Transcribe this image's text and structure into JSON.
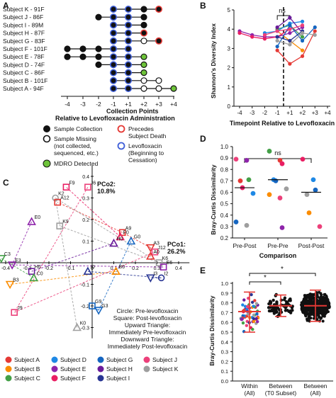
{
  "colors": {
    "A": "#e53935",
    "B": "#fb8c00",
    "C": "#43a047",
    "D": "#1e88e5",
    "E": "#8e24aa",
    "F": "#e91e63",
    "G": "#1565c0",
    "H": "#6a1b9a",
    "I": "#283593",
    "J": "#ec407a",
    "K": "#9e9e9e",
    "blue_ring": "#3f5fd8",
    "red_ring": "#e53935",
    "green_fill": "#6ec43a"
  },
  "panelA": {
    "label": "A",
    "subjects": [
      "Subject K - 91F",
      "Subject J - 86F",
      "Subject I - 89M",
      "Subject H - 87F",
      "Subject G - 83F",
      "Subject F - 101F",
      "Subject E - 78F",
      "Subject D - 74F",
      "Subject C - 86F",
      "Subject B - 101F",
      "Subject A - 94F"
    ],
    "ticks": [
      "-4",
      "-3",
      "-2",
      "-1",
      "+1",
      "+2",
      "+3",
      "+4"
    ],
    "xlabel1": "Collection Points",
    "xlabel2": "Relative to Levofloxacin Administration",
    "legend": {
      "sample_collection": "Sample Collection",
      "sample_missing_1": "Sample Missing",
      "sample_missing_2": "(not collected,",
      "sample_missing_3": "sequenced, etc.)",
      "mdro": "MDRO Detected",
      "death_1": "Precedes",
      "death_2": "Subject Death",
      "levo_1": "Levofloxacin",
      "levo_2": "(Beginning to",
      "levo_3": "Cessation)"
    }
  },
  "panelB": {
    "label": "B",
    "ylabel": "Shannon's Diversity Index",
    "xlabel": "Timepoint Relative to Levofloxacin",
    "ns": "ns",
    "yticks": [
      "0",
      "1",
      "2",
      "3",
      "4",
      "5"
    ],
    "xticks": [
      "-4",
      "-3",
      "-2",
      "-1",
      "+1",
      "+2",
      "+3",
      "+4"
    ]
  },
  "panelC": {
    "label": "C",
    "pco2": "PCo2:",
    "pco2_val": "10.8%",
    "pco1": "PCo1:",
    "pco1_val": "26.2%",
    "xticks": [
      "-0.5",
      "-0.4",
      "-0.3",
      "-0.2",
      "-0.1",
      "0",
      "0.1",
      "0.2",
      "0.3",
      "0.4"
    ],
    "yticks": [
      "0.4",
      "0.3",
      "0.2",
      "0.1",
      "-0.1",
      "-0.2",
      "-0.3"
    ],
    "note": [
      "Circle: Pre-levofloxacin",
      "Square: Post-levofloxacin",
      "Upward Triangle:",
      "Immediately Pre-levofloxacin",
      "Downward Triangle:",
      "Immediately Post-levofloxacin"
    ],
    "point_labels": [
      "F9",
      "J6",
      "K2",
      "A12",
      "E0",
      "K9",
      "A9",
      "F0",
      "G0",
      "H0",
      "A3",
      "J12",
      "C3",
      "E3",
      "A0",
      "K6",
      "E6",
      "H6",
      "C0",
      "I0",
      "B0",
      "I3",
      "I2",
      "B3",
      "J9",
      "G9",
      "G3",
      "K0"
    ]
  },
  "panelD": {
    "label": "D",
    "ylabel": "Bray-Curtis Dissimilarity",
    "xlabel": "Comparison",
    "ns": "ns",
    "yticks": [
      "0.2",
      "0.3",
      "0.4",
      "0.5",
      "0.6",
      "0.7",
      "0.8",
      "0.9",
      "1.0"
    ],
    "categories": [
      "Pre-Post",
      "Pre-Pre",
      "Post-Post"
    ]
  },
  "panelE": {
    "label": "E",
    "ylabel": "Bray-Curtis Dissimilarity",
    "yticks": [
      "0.0",
      "0.1",
      "0.2",
      "0.3",
      "0.4",
      "0.5",
      "0.6",
      "0.7",
      "0.8",
      "0.9",
      "1.0"
    ],
    "cat1": [
      "Within",
      "(All)"
    ],
    "cat2": [
      "Between",
      "(T0 Subset)"
    ],
    "cat3": [
      "Between",
      "(All)"
    ],
    "star": "*"
  },
  "legendC": [
    "Subject A",
    "Subject B",
    "Subject C",
    "Subject D",
    "Subject E",
    "Subject F",
    "Subject G",
    "Subject H",
    "Subject I",
    "Subject J",
    "Subject K"
  ],
  "chart_data": [
    {
      "type": "scatter",
      "title": "",
      "description": "Sample timeline per subject",
      "categories": [
        "Subject K - 91F",
        "Subject J - 86F",
        "Subject I - 89M",
        "Subject H - 87F",
        "Subject G - 83F",
        "Subject F - 101F",
        "Subject E - 78F",
        "Subject D - 74F",
        "Subject C - 86F",
        "Subject B - 101F",
        "Subject A - 94F"
      ],
      "x": [
        "-4",
        "-3",
        "-2",
        "-1",
        "+1",
        "+2",
        "+3",
        "+4"
      ],
      "xlabel": "Collection Points Relative to Levofloxacin Administration",
      "rows": [
        {
          "start": -1,
          "end": 3,
          "missing": [],
          "death": [
            3
          ],
          "mdro": []
        },
        {
          "start": -2,
          "end": 2,
          "missing": [],
          "death": [],
          "mdro": []
        },
        {
          "start": -1,
          "end": 2,
          "missing": [],
          "death": [],
          "mdro": []
        },
        {
          "start": -1,
          "end": 2,
          "missing": [],
          "death": [
            2
          ],
          "mdro": []
        },
        {
          "start": -1,
          "end": 3,
          "missing": [
            2
          ],
          "death": [
            3
          ],
          "mdro": []
        },
        {
          "start": -4,
          "end": 1,
          "missing": [],
          "death": [],
          "mdro": []
        },
        {
          "start": -4,
          "end": 2,
          "missing": [],
          "death": [],
          "mdro": [
            2
          ]
        },
        {
          "start": -2,
          "end": 2,
          "missing": [],
          "death": [],
          "mdro": [
            2
          ]
        },
        {
          "start": -1,
          "end": 2,
          "missing": [],
          "death": [],
          "mdro": [
            2
          ]
        },
        {
          "start": -1,
          "end": 3,
          "missing": [
            2,
            3
          ],
          "death": [],
          "mdro": []
        },
        {
          "start": -1,
          "end": 4,
          "missing": [
            2,
            3
          ],
          "death": [],
          "mdro": [
            4
          ]
        }
      ]
    },
    {
      "type": "line",
      "xlabel": "Timepoint Relative to Levofloxacin",
      "ylabel": "Shannon's Diversity Index",
      "ylim": [
        0,
        5
      ],
      "x": [
        "-4",
        "-3",
        "-2",
        "-1",
        "+1",
        "+2",
        "+3",
        "+4"
      ],
      "series": [
        {
          "subject": "A",
          "values": [
            null,
            null,
            null,
            2.9,
            2.2,
            2.6,
            3.9,
            null
          ]
        },
        {
          "subject": "B",
          "values": [
            null,
            null,
            null,
            3.9,
            3.4,
            2.9,
            null,
            null
          ]
        },
        {
          "subject": "C",
          "values": [
            null,
            null,
            null,
            4.0,
            4.2,
            3.6,
            null,
            null
          ]
        },
        {
          "subject": "D",
          "values": [
            null,
            null,
            3.8,
            3.9,
            4.3,
            4.4,
            null,
            null
          ]
        },
        {
          "subject": "E",
          "values": [
            3.9,
            3.7,
            3.6,
            3.6,
            3.8,
            4.1,
            null,
            null
          ]
        },
        {
          "subject": "F",
          "values": [
            3.8,
            3.6,
            3.5,
            3.6,
            4.0,
            null,
            null,
            null
          ]
        },
        {
          "subject": "G",
          "values": [
            null,
            null,
            null,
            3.1,
            4.2,
            3.4,
            4.1,
            null
          ]
        },
        {
          "subject": "H",
          "values": [
            null,
            null,
            null,
            4.1,
            4.6,
            3.8,
            null,
            null
          ]
        },
        {
          "subject": "I",
          "values": [
            null,
            null,
            null,
            3.6,
            3.4,
            3.9,
            null,
            null
          ]
        },
        {
          "subject": "J",
          "values": [
            null,
            null,
            3.7,
            3.9,
            4.0,
            4.2,
            null,
            null
          ]
        },
        {
          "subject": "K",
          "values": [
            null,
            null,
            null,
            3.4,
            3.2,
            3.8,
            3.7,
            null
          ]
        }
      ]
    },
    {
      "type": "scatter",
      "xlabel": "PCo1: 26.2%",
      "ylabel": "PCo2: 10.8%",
      "xlim": [
        -0.5,
        0.45
      ],
      "ylim": [
        -0.35,
        0.45
      ],
      "points": [
        {
          "label": "F9",
          "x": -0.12,
          "y": 0.35
        },
        {
          "label": "J6",
          "x": -0.02,
          "y": 0.35
        },
        {
          "label": "K2",
          "x": -0.17,
          "y": 0.3
        },
        {
          "label": "A12",
          "x": -0.16,
          "y": 0.28
        },
        {
          "label": "E0",
          "x": -0.28,
          "y": 0.19
        },
        {
          "label": "K9",
          "x": -0.15,
          "y": 0.17
        },
        {
          "label": "A9",
          "x": 0.14,
          "y": 0.14
        },
        {
          "label": "F0",
          "x": 0.13,
          "y": 0.12
        },
        {
          "label": "G0",
          "x": 0.18,
          "y": 0.1
        },
        {
          "label": "H0",
          "x": 0.1,
          "y": 0.09
        },
        {
          "label": "A3",
          "x": 0.27,
          "y": 0.07
        },
        {
          "label": "J12",
          "x": 0.29,
          "y": 0.05
        },
        {
          "label": "C3",
          "x": -0.42,
          "y": 0.02
        },
        {
          "label": "E3",
          "x": -0.37,
          "y": -0.01
        },
        {
          "label": "A0",
          "x": 0.27,
          "y": 0.03
        },
        {
          "label": "K6",
          "x": 0.31,
          "y": 0.0
        },
        {
          "label": "E6",
          "x": 0.33,
          "y": -0.02
        },
        {
          "label": "H6",
          "x": -0.28,
          "y": -0.04
        },
        {
          "label": "C0",
          "x": -0.27,
          "y": -0.07
        },
        {
          "label": "I0",
          "x": -0.02,
          "y": -0.04
        },
        {
          "label": "B0",
          "x": 0.11,
          "y": -0.04
        },
        {
          "label": "I3",
          "x": 0.27,
          "y": -0.07
        },
        {
          "label": "I2",
          "x": 0.32,
          "y": -0.07
        },
        {
          "label": "B3",
          "x": -0.38,
          "y": -0.1
        },
        {
          "label": "J9",
          "x": -0.36,
          "y": -0.23
        },
        {
          "label": "G9",
          "x": 0.0,
          "y": -0.2
        },
        {
          "label": "G3",
          "x": 0.03,
          "y": -0.22
        },
        {
          "label": "K0",
          "x": -0.07,
          "y": -0.3
        }
      ]
    },
    {
      "type": "scatter",
      "xlabel": "Comparison",
      "ylabel": "Bray-Curtis Dissimilarity",
      "ylim": [
        0.2,
        1.0
      ],
      "categories": [
        "Pre-Post",
        "Pre-Pre",
        "Post-Post"
      ],
      "medians": [
        0.64,
        0.71,
        0.6
      ],
      "groups": [
        {
          "category": "Pre-Post",
          "values": [
            0.89,
            0.88,
            0.71,
            0.7,
            0.64,
            0.59,
            0.34,
            0.31
          ]
        },
        {
          "category": "Pre-Pre",
          "values": [
            0.96,
            0.88,
            0.85,
            0.71,
            0.7,
            0.63,
            0.58,
            0.55,
            0.29
          ]
        },
        {
          "category": "Post-Post",
          "values": [
            0.89,
            0.71,
            0.62,
            0.58,
            0.42,
            0.3
          ]
        }
      ]
    },
    {
      "type": "scatter",
      "ylabel": "Bray-Curtis Dissimilarity",
      "ylim": [
        0.0,
        1.0
      ],
      "categories": [
        "Within (All)",
        "Between (T0 Subset)",
        "Between (All)"
      ],
      "means": [
        0.71,
        0.77,
        0.77
      ],
      "error_low": [
        0.5,
        0.66,
        0.61
      ],
      "error_high": [
        0.91,
        0.88,
        0.93
      ],
      "significance": [
        "Within vs Between (T0 Subset): *",
        "Within vs Between (All): *"
      ]
    }
  ]
}
